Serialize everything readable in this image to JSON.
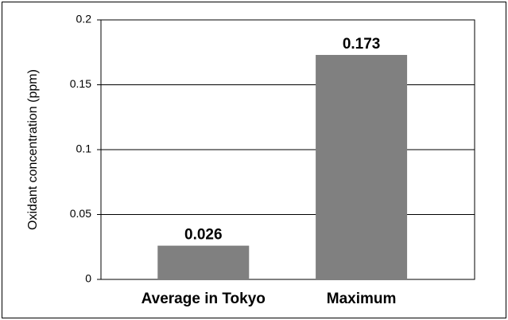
{
  "chart_data": {
    "type": "bar",
    "y_label": "Oxidant concentration (ppm)",
    "categories": [
      "Average in Tokyo",
      "Maximum"
    ],
    "values": [
      0.026,
      0.173
    ],
    "color": "#808080",
    "ylim": [
      0,
      0.2
    ],
    "yticks": [
      0,
      0.05,
      0.1,
      0.15,
      0.2
    ],
    "grid": true
  }
}
